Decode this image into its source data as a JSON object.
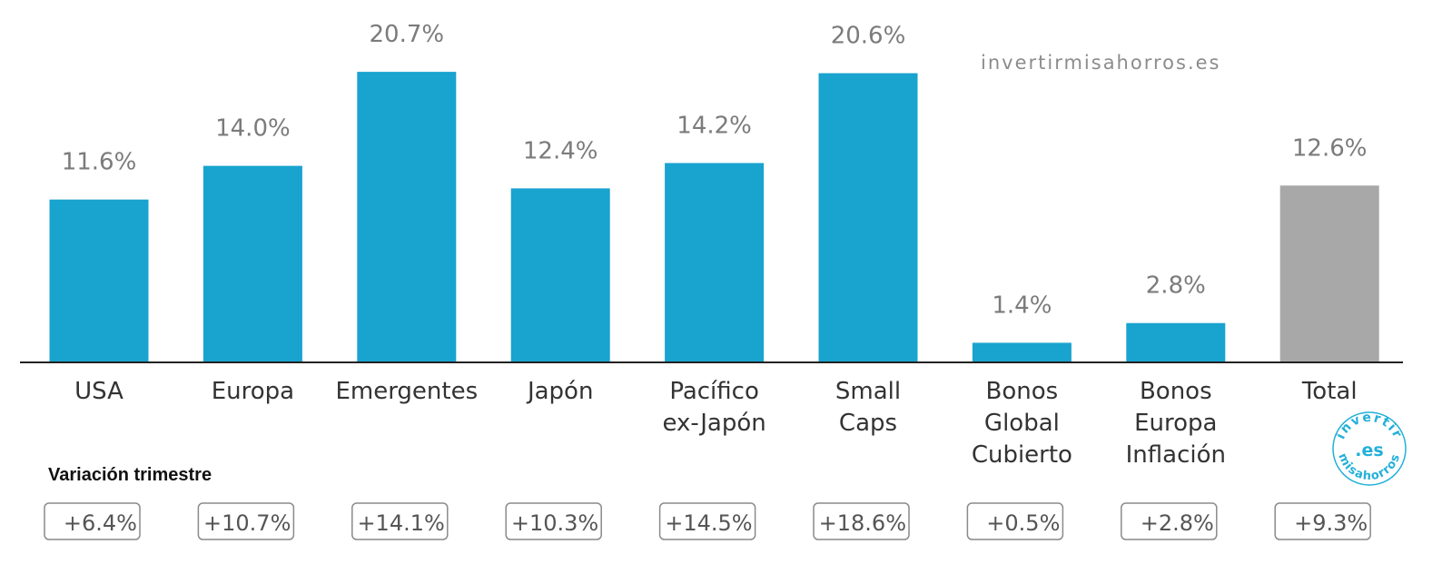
{
  "chart_data": {
    "type": "bar",
    "title": "",
    "xlabel": "",
    "ylabel": "",
    "ylim": [
      0,
      22
    ],
    "grid": false,
    "categories": [
      [
        "USA"
      ],
      [
        "Europa"
      ],
      [
        "Emergentes"
      ],
      [
        "Japón"
      ],
      [
        "Pacífico",
        "ex-Japón"
      ],
      [
        "Small",
        "Caps"
      ],
      [
        "Bonos",
        "Global",
        "Cubierto"
      ],
      [
        "Bonos",
        "Europa",
        "Inflación"
      ],
      [
        "Total"
      ]
    ],
    "values": [
      11.6,
      14.0,
      20.7,
      12.4,
      14.2,
      20.6,
      1.4,
      2.8,
      12.6
    ],
    "value_labels": [
      "11.6%",
      "14.0%",
      "20.7%",
      "12.4%",
      "14.2%",
      "20.6%",
      "1.4%",
      "2.8%",
      "12.6%"
    ],
    "bar_colors": [
      "#19a3cf",
      "#19a3cf",
      "#19a3cf",
      "#19a3cf",
      "#19a3cf",
      "#19a3cf",
      "#19a3cf",
      "#19a3cf",
      "#a8a8a8"
    ],
    "quarterly_variation": {
      "title": "Variación trimestre",
      "values": [
        "+6.4%",
        "+10.7%",
        "+14.1%",
        "+10.3%",
        "+14.5%",
        "+18.6%",
        "+0.5%",
        "+2.8%",
        "+9.3%"
      ]
    }
  },
  "watermark": "invertirmisahorros.es",
  "seal": {
    "top": "invertir",
    "center": ".es",
    "bottom": "misahorros"
  }
}
